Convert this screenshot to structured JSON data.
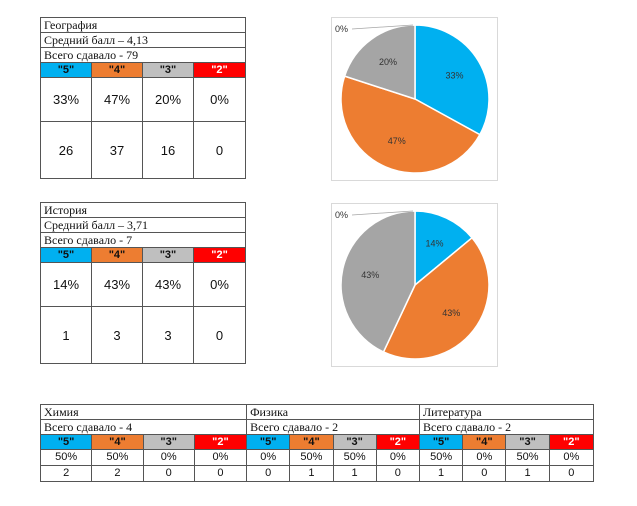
{
  "grade_labels": [
    "\"5\"",
    "\"4\"",
    "\"3\"",
    "\"2\""
  ],
  "colors": {
    "g5": "#00b0f0",
    "g4": "#ed7d31",
    "g3": "#a5a5a5",
    "g2": "#ff0000"
  },
  "geography": {
    "title": "География",
    "avg": "Средний балл – 4,13",
    "total": "Всего сдавало - 79",
    "pct": [
      "33%",
      "47%",
      "20%",
      "0%"
    ],
    "counts": [
      "26",
      "37",
      "16",
      "0"
    ]
  },
  "history": {
    "title": "История",
    "avg": "Средний балл – 3,71",
    "total": "Всего сдавало - 7",
    "pct": [
      "14%",
      "43%",
      "43%",
      "0%"
    ],
    "counts": [
      "1",
      "3",
      "3",
      "0"
    ]
  },
  "bottom": {
    "subjects": [
      {
        "name": "Химия",
        "total": "Всего сдавало - 4",
        "pct": [
          "50%",
          "50%",
          "0%",
          "0%"
        ],
        "counts": [
          "2",
          "2",
          "0",
          "0"
        ]
      },
      {
        "name": "Физика",
        "total": "Всего сдавало - 2",
        "pct": [
          "0%",
          "50%",
          "50%",
          "0%"
        ],
        "counts": [
          "0",
          "1",
          "1",
          "0"
        ]
      },
      {
        "name": "Литература",
        "total": "Всего сдавало - 2",
        "pct": [
          "50%",
          "0%",
          "50%",
          "0%"
        ],
        "counts": [
          "1",
          "0",
          "1",
          "0"
        ]
      }
    ]
  },
  "chart_data": [
    {
      "type": "pie",
      "title": "",
      "categories": [
        "\"5\"",
        "\"4\"",
        "\"3\"",
        "\"2\""
      ],
      "values": [
        33,
        47,
        20,
        0
      ],
      "labels": [
        "33%",
        "47%",
        "20%",
        "0%"
      ]
    },
    {
      "type": "pie",
      "title": "",
      "categories": [
        "\"5\"",
        "\"4\"",
        "\"3\"",
        "\"2\""
      ],
      "values": [
        14,
        43,
        43,
        0
      ],
      "labels": [
        "14%",
        "43%",
        "43%",
        "0%"
      ]
    }
  ]
}
